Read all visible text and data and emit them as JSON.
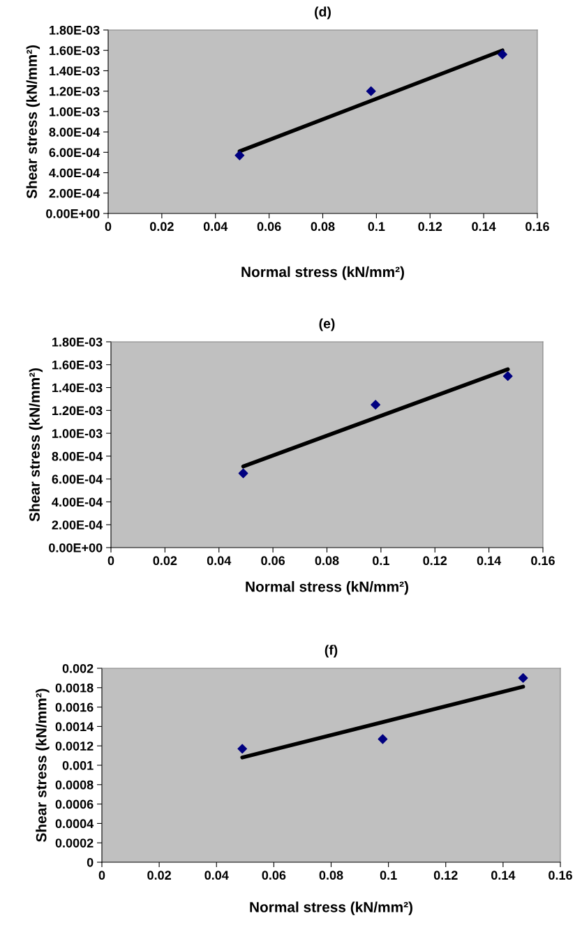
{
  "chart_data": [
    {
      "type": "scatter",
      "title": "(d)",
      "xlabel": "Normal stress (kN/mm²)",
      "ylabel": "Shear stress (kN/mm²)",
      "marker": "diamond",
      "xlim": [
        0,
        0.16
      ],
      "xticks": [
        0,
        0.02,
        0.04,
        0.06,
        0.08,
        0.1,
        0.12,
        0.14,
        0.16
      ],
      "ylim": [
        0,
        0.0018
      ],
      "yticks": [
        {
          "value": 0,
          "label": "0.00E+00"
        },
        {
          "value": 0.0002,
          "label": "2.00E-04"
        },
        {
          "value": 0.0004,
          "label": "4.00E-04"
        },
        {
          "value": 0.0006,
          "label": "6.00E-04"
        },
        {
          "value": 0.0008,
          "label": "8.00E-04"
        },
        {
          "value": 0.001,
          "label": "1.00E-03"
        },
        {
          "value": 0.0012,
          "label": "1.20E-03"
        },
        {
          "value": 0.0014,
          "label": "1.40E-03"
        },
        {
          "value": 0.0016,
          "label": "1.60E-03"
        },
        {
          "value": 0.0018,
          "label": "1.80E-03"
        }
      ],
      "x": [
        0.049,
        0.098,
        0.147
      ],
      "series": [
        {
          "color": "#000080",
          "values": [
            0.00057,
            0.0012,
            0.00156
          ]
        },
        {
          "type": "line",
          "marker": "none",
          "color": "#000000",
          "values": [
            0.00061,
            null,
            0.0016
          ]
        }
      ]
    },
    {
      "type": "scatter",
      "title": "(e)",
      "xlabel": "Normal stress (kN/mm²)",
      "ylabel": "Shear stress (kN/mm²)",
      "marker": "diamond",
      "xlim": [
        0,
        0.16
      ],
      "xticks": [
        0,
        0.02,
        0.04,
        0.06,
        0.08,
        0.1,
        0.12,
        0.14,
        0.16
      ],
      "ylim": [
        0,
        0.0018
      ],
      "yticks": [
        {
          "value": 0,
          "label": "0.00E+00"
        },
        {
          "value": 0.0002,
          "label": "2.00E-04"
        },
        {
          "value": 0.0004,
          "label": "4.00E-04"
        },
        {
          "value": 0.0006,
          "label": "6.00E-04"
        },
        {
          "value": 0.0008,
          "label": "8.00E-04"
        },
        {
          "value": 0.001,
          "label": "1.00E-03"
        },
        {
          "value": 0.0012,
          "label": "1.20E-03"
        },
        {
          "value": 0.0014,
          "label": "1.40E-03"
        },
        {
          "value": 0.0016,
          "label": "1.60E-03"
        },
        {
          "value": 0.0018,
          "label": "1.80E-03"
        }
      ],
      "x": [
        0.049,
        0.098,
        0.147
      ],
      "series": [
        {
          "color": "#000080",
          "values": [
            0.00065,
            0.00125,
            0.0015
          ]
        },
        {
          "type": "line",
          "marker": "none",
          "color": "#000000",
          "values": [
            0.00071,
            null,
            0.00156
          ]
        }
      ]
    },
    {
      "type": "scatter",
      "title": "(f)",
      "xlabel": "Normal stress (kN/mm²)",
      "ylabel": "Shear stress (kN/mm²)",
      "marker": "diamond",
      "xlim": [
        0,
        0.16
      ],
      "xticks": [
        0,
        0.02,
        0.04,
        0.06,
        0.08,
        0.1,
        0.12,
        0.14,
        0.16
      ],
      "ylim": [
        0,
        0.002
      ],
      "yticks": [
        0,
        0.0002,
        0.0004,
        0.0006,
        0.0008,
        0.001,
        0.0012,
        0.0014,
        0.0016,
        0.0018,
        0.002
      ],
      "x": [
        0.049,
        0.098,
        0.147
      ],
      "series": [
        {
          "color": "#000080",
          "values": [
            0.00117,
            0.00127,
            0.0019
          ]
        },
        {
          "type": "line",
          "marker": "none",
          "color": "#000000",
          "values": [
            0.00108,
            null,
            0.00181
          ]
        }
      ]
    }
  ]
}
